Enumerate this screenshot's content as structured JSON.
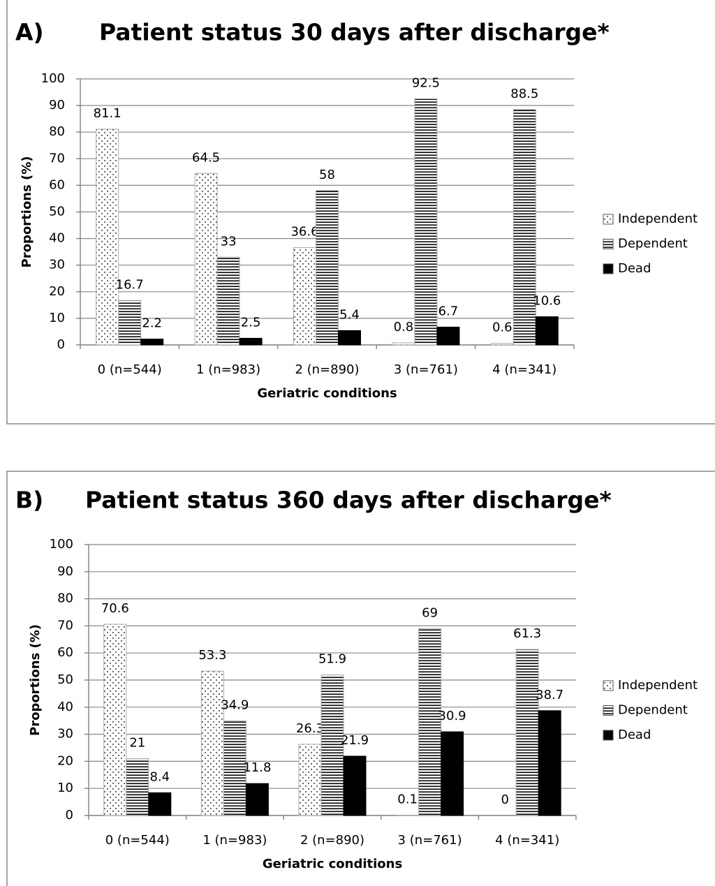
{
  "chart_data": [
    {
      "type": "bar",
      "panel": "A)",
      "title": "Patient status 30 days after discharge*",
      "x_label": "Geriatric conditions",
      "y_label": "Proportions (%)",
      "categories": [
        "0 (n=544)",
        "1 (n=983)",
        "2 (n=890)",
        "3 (n=761)",
        "4 (n=341)"
      ],
      "series": [
        {
          "name": "Independent",
          "color": "#000000",
          "pattern": "dots",
          "values": [
            81.1,
            64.5,
            36.6,
            0.8,
            0.6
          ]
        },
        {
          "name": "Dependent",
          "color": "#000000",
          "pattern": "hlines",
          "values": [
            16.7,
            33,
            58,
            92.5,
            88.5
          ]
        },
        {
          "name": "Dead",
          "color": "#000000",
          "pattern": "solid",
          "values": [
            2.2,
            2.5,
            5.4,
            6.7,
            10.6
          ]
        }
      ],
      "ylim": [
        0,
        100
      ],
      "yticks": [
        0,
        10,
        20,
        30,
        40,
        50,
        60,
        70,
        80,
        90,
        100
      ],
      "grid": true,
      "legend": "right"
    },
    {
      "type": "bar",
      "panel": "B)",
      "title": "Patient status 360 days after discharge*",
      "x_label": "Geriatric conditions",
      "y_label": "Proportions (%)",
      "categories": [
        "0 (n=544)",
        "1 (n=983)",
        "2 (n=890)",
        "3 (n=761)",
        "4 (n=341)"
      ],
      "series": [
        {
          "name": "Independent",
          "color": "#000000",
          "pattern": "dots",
          "values": [
            70.6,
            53.3,
            26.3,
            0.1,
            0
          ]
        },
        {
          "name": "Dependent",
          "color": "#000000",
          "pattern": "hlines",
          "values": [
            21,
            34.9,
            51.9,
            69,
            61.3
          ]
        },
        {
          "name": "Dead",
          "color": "#000000",
          "pattern": "solid",
          "values": [
            8.4,
            11.8,
            21.9,
            30.9,
            38.7
          ]
        }
      ],
      "ylim": [
        0,
        100
      ],
      "yticks": [
        0,
        10,
        20,
        30,
        40,
        50,
        60,
        70,
        80,
        90,
        100
      ],
      "grid": true,
      "legend": "right"
    }
  ]
}
